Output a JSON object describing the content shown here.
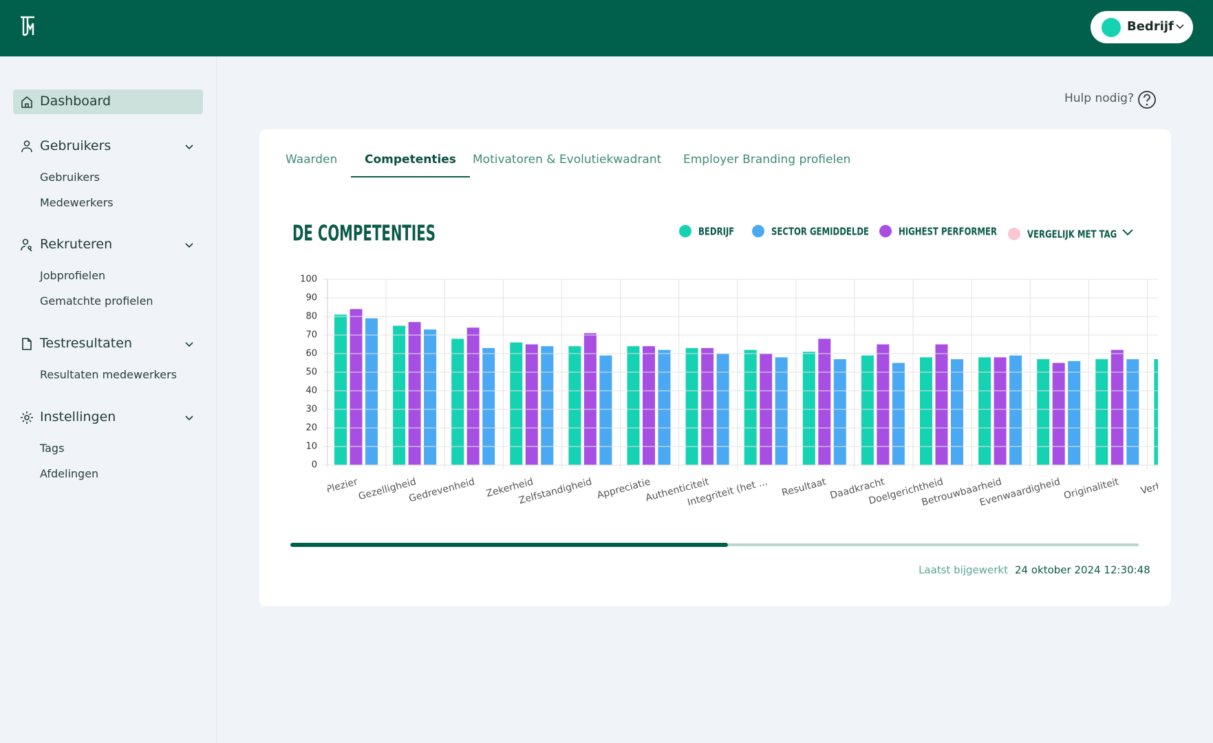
{
  "header": {
    "account": "Bedrijf"
  },
  "sidebar": {
    "dashboard": "Dashboard",
    "groups": [
      {
        "label": "Gebruikers",
        "items": [
          "Gebruikers",
          "Medewerkers"
        ]
      },
      {
        "label": "Rekruteren",
        "items": [
          "Jobprofielen",
          "Gematchte profielen"
        ]
      },
      {
        "label": "Testresultaten",
        "items": [
          "Resultaten medewerkers"
        ]
      },
      {
        "label": "Instellingen",
        "items": [
          "Tags",
          "Afdelingen"
        ]
      }
    ]
  },
  "help": "Hulp nodig?",
  "tabs": [
    "Waarden",
    "Competenties",
    "Motivatoren & Evolutiekwadrant",
    "Employer Branding profielen"
  ],
  "active_tab": 1,
  "chart_data": {
    "type": "bar",
    "title": "DE COMPETENTIES",
    "categories": [
      "Plezier",
      "Gezelligheid",
      "Gedrevenheid",
      "Zekerheid",
      "Zelfstandigheid",
      "Appreciatie",
      "Authenticiteit",
      "Integriteit (het ...",
      "Resultaat",
      "Daadkracht",
      "Doelgerichtheid",
      "Betrouwbaarheid",
      "Evenwaardigheid",
      "Originaliteit",
      "Verbete"
    ],
    "series": [
      {
        "name": "BEDRIJF",
        "color": "#14d2b2",
        "values": [
          81,
          75,
          68,
          66,
          64,
          64,
          63,
          62,
          61,
          59,
          58,
          58,
          57,
          57,
          57
        ]
      },
      {
        "name": "HIGHEST PERFORMER",
        "color": "#a84fe3",
        "values": [
          84,
          77,
          74,
          65,
          71,
          64,
          63,
          60,
          68,
          65,
          65,
          58,
          55,
          62,
          null
        ]
      },
      {
        "name": "SECTOR GEMIDDELDE",
        "color": "#4aa9f2",
        "values": [
          79,
          73,
          63,
          64,
          59,
          62,
          60,
          58,
          57,
          55,
          57,
          59,
          56,
          57,
          null
        ]
      }
    ],
    "compare": {
      "name": "VERGELIJK MET TAG",
      "color": "#f9c7d1"
    },
    "ylim": [
      0,
      100
    ],
    "yticks": [
      0,
      10,
      20,
      30,
      40,
      50,
      60,
      70,
      80,
      90,
      100
    ],
    "grid": true
  },
  "updated": {
    "label": "Laatst bijgewerkt",
    "value": "24 oktober 2024 12:30:48"
  }
}
